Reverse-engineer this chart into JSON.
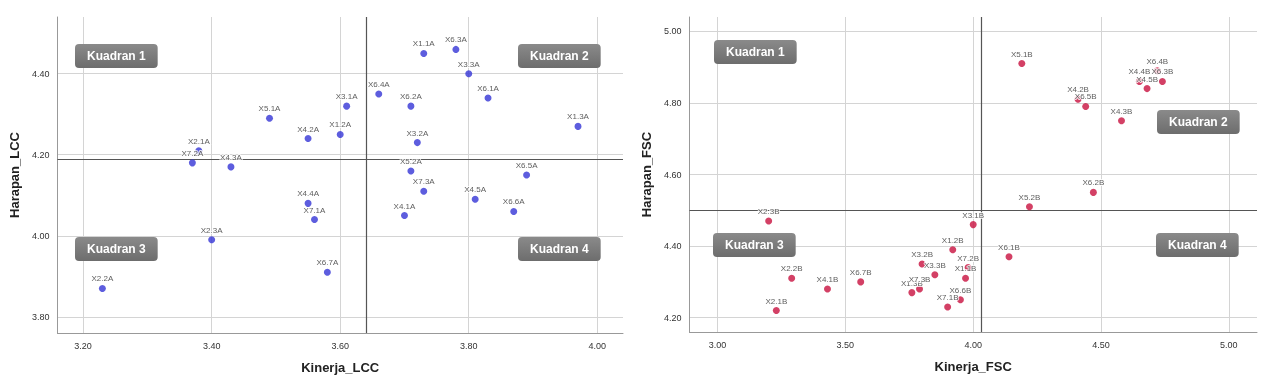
{
  "chart_data": [
    {
      "type": "scatter",
      "xlabel": "Kinerja_LCC",
      "ylabel": "Harapan_LCC",
      "x": [
        3.23,
        3.4,
        3.38,
        3.37,
        3.43,
        3.49,
        3.55,
        3.55,
        3.56,
        3.6,
        3.61,
        3.58,
        3.66,
        3.71,
        3.72,
        3.71,
        3.73,
        3.7,
        3.73,
        3.78,
        3.8,
        3.83,
        3.81,
        3.87,
        3.89,
        3.97
      ],
      "values": [
        3.87,
        3.99,
        4.21,
        4.18,
        4.17,
        4.29,
        4.24,
        4.08,
        4.04,
        4.25,
        4.32,
        3.91,
        4.35,
        4.32,
        4.23,
        4.16,
        4.11,
        4.05,
        4.45,
        4.46,
        4.4,
        4.34,
        4.09,
        4.06,
        4.15,
        4.27
      ],
      "value_labels": [
        "X2.2A",
        "X2.3A",
        "X2.1A",
        "X7.2A",
        "X4.3A",
        "X5.1A",
        "X4.2A",
        "X4.4A",
        "X7.1A",
        "X1.2A",
        "X3.1A",
        "X6.7A",
        "X6.4A",
        "X6.2A",
        "X3.2A",
        "X5.2A",
        "X7.3A",
        "X4.1A",
        "X1.1A",
        "X6.3A",
        "X3.3A",
        "X6.1A",
        "X4.5A",
        "X6.6A",
        "X6.5A",
        "X1.3A"
      ],
      "color": "#3434d6",
      "marker": "circle",
      "grid": true,
      "xlim": [
        3.16,
        4.04
      ],
      "xticks": [
        {
          "value": 3.2,
          "label": "3.20"
        },
        {
          "value": 3.4,
          "label": "3.40"
        },
        {
          "value": 3.6,
          "label": "3.60"
        },
        {
          "value": 3.8,
          "label": "3.80"
        },
        {
          "value": 4.0,
          "label": "4.00"
        }
      ],
      "ylim": [
        3.76,
        4.54
      ],
      "yticks": [
        {
          "value": 3.8,
          "label": "3.80"
        },
        {
          "value": 4.0,
          "label": "4.00"
        },
        {
          "value": 4.2,
          "label": "4.20"
        },
        {
          "value": 4.4,
          "label": "4.40"
        }
      ],
      "ref_lines": [
        {
          "axis": "x",
          "value": 3.64,
          "color": "#555555"
        },
        {
          "axis": "y",
          "value": 4.19,
          "color": "#555555"
        }
      ],
      "annotations": [
        "Kuadran 1",
        "Kuadran 2",
        "Kuadran 3",
        "Kuadran 4"
      ]
    },
    {
      "type": "scatter",
      "xlabel": "Kinerja_FSC",
      "ylabel": "Harapan_FSC",
      "x": [
        3.2,
        3.29,
        3.23,
        3.43,
        3.56,
        3.76,
        3.79,
        3.8,
        3.85,
        3.92,
        3.9,
        3.95,
        3.97,
        3.98,
        4.0,
        4.14,
        4.22,
        4.47,
        4.19,
        4.41,
        4.44,
        4.58,
        4.65,
        4.68,
        4.72,
        4.74
      ],
      "values": [
        4.47,
        4.31,
        4.22,
        4.28,
        4.3,
        4.27,
        4.28,
        4.35,
        4.32,
        4.39,
        4.23,
        4.25,
        4.31,
        4.34,
        4.46,
        4.37,
        4.51,
        4.55,
        4.91,
        4.81,
        4.79,
        4.75,
        4.86,
        4.84,
        4.89,
        4.86
      ],
      "value_labels": [
        "X2.3B",
        "X2.2B",
        "X2.1B",
        "X4.1B",
        "X6.7B",
        "X1.3B",
        "X7.3B",
        "X3.2B",
        "X3.3B",
        "X1.2B",
        "X7.1B",
        "X6.6B",
        "X1.1B",
        "X7.2B",
        "X3.1B",
        "X6.1B",
        "X5.2B",
        "X6.2B",
        "X5.1B",
        "X4.2B",
        "X6.5B",
        "X4.3B",
        "X4.4B",
        "X4.5B",
        "X6.4B",
        "X6.3B"
      ],
      "color": "#c8103e",
      "marker": "circle",
      "grid": true,
      "xlim": [
        2.89,
        5.11
      ],
      "xticks": [
        {
          "value": 3.0,
          "label": "3.00"
        },
        {
          "value": 3.5,
          "label": "3.50"
        },
        {
          "value": 4.0,
          "label": "4.00"
        },
        {
          "value": 4.5,
          "label": "4.50"
        },
        {
          "value": 5.0,
          "label": "5.00"
        }
      ],
      "ylim": [
        4.16,
        5.04
      ],
      "yticks": [
        {
          "value": 4.2,
          "label": "4.20"
        },
        {
          "value": 4.4,
          "label": "4.40"
        },
        {
          "value": 4.6,
          "label": "4.60"
        },
        {
          "value": 4.8,
          "label": "4.80"
        },
        {
          "value": 5.0,
          "label": "5.00"
        }
      ],
      "ref_lines": [
        {
          "axis": "x",
          "value": 4.03,
          "color": "#555555"
        },
        {
          "axis": "y",
          "value": 4.5,
          "color": "#555555"
        }
      ],
      "annotations": [
        "Kuadran 1",
        "Kuadran 2",
        "Kuadran 3",
        "Kuadran 4"
      ]
    }
  ]
}
